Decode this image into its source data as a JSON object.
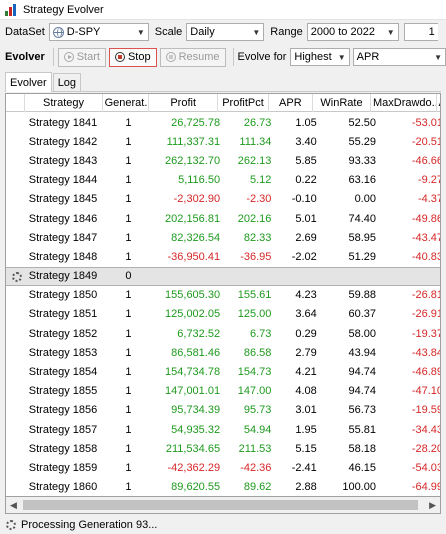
{
  "window": {
    "title": "Strategy Evolver"
  },
  "toolbar1": {
    "dataset_label": "DataSet",
    "dataset_value": "D-SPY",
    "scale_label": "Scale",
    "scale_value": "Daily",
    "range_label": "Range",
    "range_value": "2000 to 2022",
    "count_value": "1"
  },
  "toolbar2": {
    "evolver_label": "Evolver",
    "start_label": "Start",
    "stop_label": "Stop",
    "resume_label": "Resume",
    "evolve_for_label": "Evolve for",
    "evolve_for_value": "Highest",
    "metric_value": "APR"
  },
  "tabs": [
    {
      "label": "Evolver",
      "active": true
    },
    {
      "label": "Log",
      "active": false
    }
  ],
  "grid": {
    "columns": [
      "Strategy",
      "Generat...",
      "Profit",
      "ProfitPct",
      "APR",
      "WinRate",
      "MaxDrawdo...",
      "Av"
    ],
    "rows": [
      {
        "strategy": "Strategy 1841",
        "gen": "1",
        "profit": "26,725.78",
        "pct": "26.73",
        "apr": "1.05",
        "win": "52.50",
        "dd": "-53.01"
      },
      {
        "strategy": "Strategy 1842",
        "gen": "1",
        "profit": "111,337.31",
        "pct": "111.34",
        "apr": "3.40",
        "win": "55.29",
        "dd": "-20.51"
      },
      {
        "strategy": "Strategy 1843",
        "gen": "1",
        "profit": "262,132.70",
        "pct": "262.13",
        "apr": "5.85",
        "win": "93.33",
        "dd": "-46.66"
      },
      {
        "strategy": "Strategy 1844",
        "gen": "1",
        "profit": "5,116.50",
        "pct": "5.12",
        "apr": "0.22",
        "win": "63.16",
        "dd": "-9.27"
      },
      {
        "strategy": "Strategy 1845",
        "gen": "1",
        "profit": "-2,302.90",
        "pct": "-2.30",
        "apr": "-0.10",
        "win": "0.00",
        "dd": "-4.37"
      },
      {
        "strategy": "Strategy 1846",
        "gen": "1",
        "profit": "202,156.81",
        "pct": "202.16",
        "apr": "5.01",
        "win": "74.40",
        "dd": "-49.86"
      },
      {
        "strategy": "Strategy 1847",
        "gen": "1",
        "profit": "82,326.54",
        "pct": "82.33",
        "apr": "2.69",
        "win": "58.95",
        "dd": "-43.47"
      },
      {
        "strategy": "Strategy 1848",
        "gen": "1",
        "profit": "-36,950.41",
        "pct": "-36.95",
        "apr": "-2.02",
        "win": "51.29",
        "dd": "-40.83"
      },
      {
        "strategy": "Strategy 1849",
        "gen": "0",
        "profit": "",
        "pct": "",
        "apr": "",
        "win": "",
        "dd": "",
        "processing": true
      },
      {
        "strategy": "Strategy 1850",
        "gen": "1",
        "profit": "155,605.30",
        "pct": "155.61",
        "apr": "4.23",
        "win": "59.88",
        "dd": "-26.81"
      },
      {
        "strategy": "Strategy 1851",
        "gen": "1",
        "profit": "125,002.05",
        "pct": "125.00",
        "apr": "3.64",
        "win": "60.37",
        "dd": "-26.91"
      },
      {
        "strategy": "Strategy 1852",
        "gen": "1",
        "profit": "6,732.52",
        "pct": "6.73",
        "apr": "0.29",
        "win": "58.00",
        "dd": "-19.37"
      },
      {
        "strategy": "Strategy 1853",
        "gen": "1",
        "profit": "86,581.46",
        "pct": "86.58",
        "apr": "2.79",
        "win": "43.94",
        "dd": "-43.84"
      },
      {
        "strategy": "Strategy 1854",
        "gen": "1",
        "profit": "154,734.78",
        "pct": "154.73",
        "apr": "4.21",
        "win": "94.74",
        "dd": "-46.89"
      },
      {
        "strategy": "Strategy 1855",
        "gen": "1",
        "profit": "147,001.01",
        "pct": "147.00",
        "apr": "4.08",
        "win": "94.74",
        "dd": "-47.10"
      },
      {
        "strategy": "Strategy 1856",
        "gen": "1",
        "profit": "95,734.39",
        "pct": "95.73",
        "apr": "3.01",
        "win": "56.73",
        "dd": "-19.59"
      },
      {
        "strategy": "Strategy 1857",
        "gen": "1",
        "profit": "54,935.32",
        "pct": "54.94",
        "apr": "1.95",
        "win": "55.81",
        "dd": "-34.43"
      },
      {
        "strategy": "Strategy 1858",
        "gen": "1",
        "profit": "211,534.65",
        "pct": "211.53",
        "apr": "5.15",
        "win": "58.18",
        "dd": "-28.20"
      },
      {
        "strategy": "Strategy 1859",
        "gen": "1",
        "profit": "-42,362.29",
        "pct": "-42.36",
        "apr": "-2.41",
        "win": "46.15",
        "dd": "-54.03"
      },
      {
        "strategy": "Strategy 1860",
        "gen": "1",
        "profit": "89,620.55",
        "pct": "89.62",
        "apr": "2.88",
        "win": "100.00",
        "dd": "-64.99"
      }
    ]
  },
  "status": {
    "text": "Processing Generation 93..."
  },
  "colors": {
    "positive": "#1e9a1e",
    "negative": "#d62728",
    "stop_border": "#d9534f"
  },
  "icons": {
    "app": "bar-chart-icon",
    "dataset": "globe-icon",
    "start": "play-icon",
    "stop": "stop-icon",
    "resume": "resume-icon",
    "processing": "spinner-icon"
  }
}
